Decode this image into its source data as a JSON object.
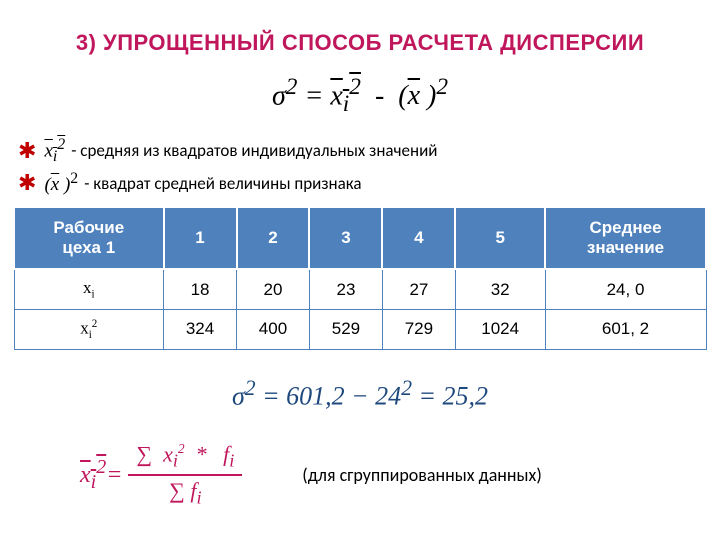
{
  "title_color": "#c0175c",
  "title": "3) УПРОЩЕННЫЙ СПОСОБ РАСЧЕТА ДИСПЕРСИИ",
  "formula_main_html": "σ<sup>2</sup> = <span class='overline'>x<sub>i</sub><sup>2</sup></span> &nbsp;-&nbsp; (<span class='overline'>x</span>&nbsp;)<sup>2</sup>",
  "bullet1_sym_html": "<span class='overline'>x<sub>i</sub><sup>2</sup></span>",
  "bullet1_text": "- средняя из квадратов индивидуальных значений",
  "bullet2_sym_html": "(<span class='overline'>x</span> )<sup style='font-style:normal'>2</sup>",
  "bullet2_text": "- квадрат средней величины признака",
  "table": {
    "header_bg": "#4f81bd",
    "header_color": "#ffffff",
    "border_color": "#4f81bd",
    "columns": [
      "Рабочие\nцеха 1",
      "1",
      "2",
      "3",
      "4",
      "5",
      "Среднее\nзначение"
    ],
    "rows": [
      {
        "label_html": "x<span class='sub'>i</span>",
        "cells": [
          "18",
          "20",
          "23",
          "27",
          "32",
          "24, 0"
        ]
      },
      {
        "label_html": "x<span class='sub'>i</span><span class='sup'>2</span>",
        "cells": [
          "324",
          "400",
          "529",
          "729",
          "1024",
          "601, 2"
        ]
      }
    ]
  },
  "formula_calc_html": "σ<sup>2</sup> = 601,2 − 24<sup>2</sup> = 25,2",
  "frac_left_html": "<span class='overline'>x<sub>i</sub><sup>2</sup></span>=",
  "frac_num_html": "∑&nbsp; x<sub>i</sub><sup style='font-size:0.6em'>2</sup>&nbsp; *&nbsp;&nbsp; f<sub>i</sub>",
  "frac_den_html": "∑ f<sub>i</sub>",
  "note": "(для сгруппированных данных)"
}
